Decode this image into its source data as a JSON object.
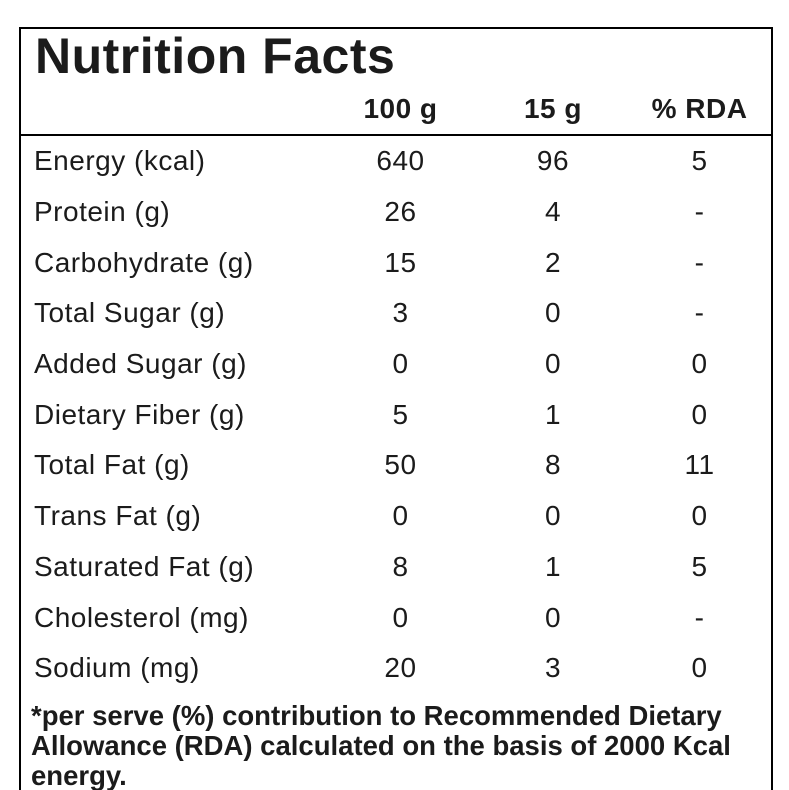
{
  "title": "Nutrition Facts",
  "columns": {
    "per100": "100 g",
    "per15": "15 g",
    "rda": "% RDA"
  },
  "rows": [
    {
      "label": "Energy (kcal)",
      "per100": "640",
      "per15": "96",
      "rda": "5"
    },
    {
      "label": "Protein (g)",
      "per100": "26",
      "per15": "4",
      "rda": "-"
    },
    {
      "label": "Carbohydrate (g)",
      "per100": "15",
      "per15": "2",
      "rda": "-"
    },
    {
      "label": "Total Sugar (g)",
      "per100": "3",
      "per15": "0",
      "rda": "-"
    },
    {
      "label": "Added Sugar (g)",
      "per100": "0",
      "per15": "0",
      "rda": "0"
    },
    {
      "label": "Dietary Fiber (g)",
      "per100": "5",
      "per15": "1",
      "rda": "0"
    },
    {
      "label": "Total Fat (g)",
      "per100": "50",
      "per15": "8",
      "rda": "11"
    },
    {
      "label": "Trans Fat (g)",
      "per100": "0",
      "per15": "0",
      "rda": "0"
    },
    {
      "label": "Saturated Fat (g)",
      "per100": "8",
      "per15": "1",
      "rda": "5"
    },
    {
      "label": "Cholesterol (mg)",
      "per100": "0",
      "per15": "0",
      "rda": "-"
    },
    {
      "label": "Sodium (mg)",
      "per100": "20",
      "per15": "3",
      "rda": "0"
    }
  ],
  "footnote": "*per serve (%) contribution to Recommended Dietary Allowance (RDA) calculated on the basis of 2000 Kcal energy.",
  "colors": {
    "text": "#1b1b1b",
    "border": "#000000",
    "background": "#ffffff"
  }
}
